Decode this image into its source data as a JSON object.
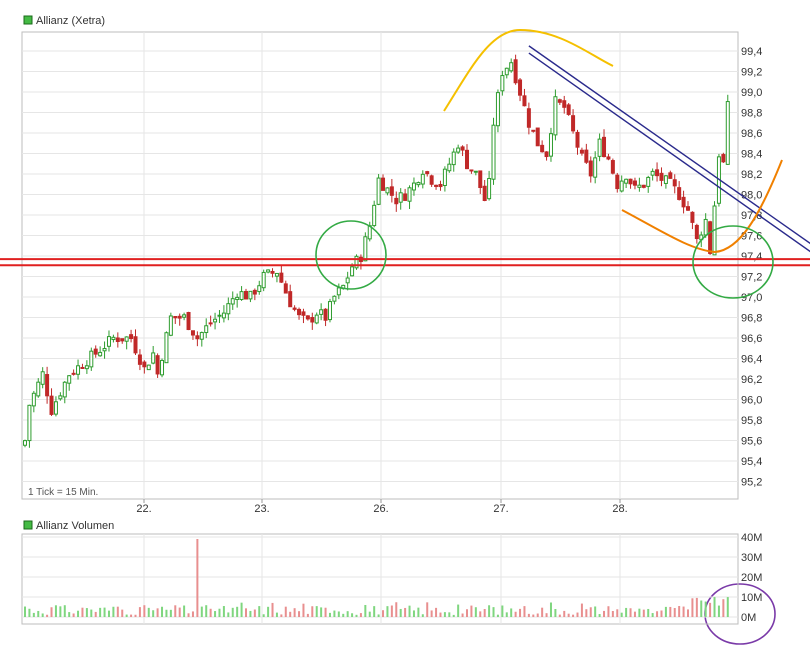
{
  "colors": {
    "up": "#2e9c2e",
    "down": "#c02828",
    "vol_up": "#7fd67f",
    "vol_down": "#e88f8f",
    "legend_box": "#44bb44",
    "support": "#e02020",
    "trend": "#2a2a8c",
    "arc_upper": "#f5c000",
    "arc_lower": "#f08000",
    "circle_green": "#33aa44",
    "circle_purple": "#7a3aa8"
  },
  "chart_data": [
    {
      "type": "candlestick",
      "title": "Allianz (Xetra)",
      "note": "1 Tick = 15 Min.",
      "x_ticks": [
        "22.",
        "23.",
        "26.",
        "27.",
        "28."
      ],
      "y_ticks": [
        "99,4",
        "99,2",
        "99,0",
        "98,8",
        "98,6",
        "98,4",
        "98,2",
        "98,0",
        "97,8",
        "97,6",
        "97,4",
        "97,2",
        "97,0",
        "96,8",
        "96,6",
        "96,4",
        "96,2",
        "96,0",
        "95,8",
        "95,6",
        "95,4",
        "95,2"
      ],
      "ylim": [
        95.1,
        99.55
      ],
      "grid": true,
      "close_path": [
        [
          0,
          95.6
        ],
        [
          1,
          95.95
        ],
        [
          4,
          96.25
        ],
        [
          6,
          95.9
        ],
        [
          10,
          96.25
        ],
        [
          16,
          96.45
        ],
        [
          20,
          96.6
        ],
        [
          24,
          96.6
        ],
        [
          27,
          96.3
        ],
        [
          29,
          96.45
        ],
        [
          30,
          96.25
        ],
        [
          33,
          96.8
        ],
        [
          36,
          96.8
        ],
        [
          39,
          96.6
        ],
        [
          42,
          96.75
        ],
        [
          45,
          96.85
        ],
        [
          48,
          97.05
        ],
        [
          51,
          97.0
        ],
        [
          54,
          97.2
        ],
        [
          57,
          97.25
        ],
        [
          60,
          96.95
        ],
        [
          62,
          96.8
        ],
        [
          64,
          96.75
        ],
        [
          66,
          96.85
        ],
        [
          68,
          96.8
        ],
        [
          70,
          97.0
        ],
        [
          72,
          97.1
        ],
        [
          74,
          97.3
        ],
        [
          76,
          97.4
        ],
        [
          78,
          97.7
        ],
        [
          80,
          98.15
        ],
        [
          82,
          98.05
        ],
        [
          84,
          97.95
        ],
        [
          86,
          98.0
        ],
        [
          88,
          98.1
        ],
        [
          90,
          98.25
        ],
        [
          92,
          98.15
        ],
        [
          94,
          98.1
        ],
        [
          96,
          98.3
        ],
        [
          98,
          98.5
        ],
        [
          100,
          98.3
        ],
        [
          102,
          98.2
        ],
        [
          104,
          97.95
        ],
        [
          105,
          98.1
        ],
        [
          106,
          98.7
        ],
        [
          108,
          99.2
        ],
        [
          110,
          99.3
        ],
        [
          112,
          99.0
        ],
        [
          114,
          98.7
        ],
        [
          116,
          98.5
        ],
        [
          118,
          98.4
        ],
        [
          120,
          98.9
        ],
        [
          122,
          98.85
        ],
        [
          124,
          98.6
        ],
        [
          126,
          98.35
        ],
        [
          128,
          98.2
        ],
        [
          130,
          98.5
        ],
        [
          132,
          98.35
        ],
        [
          134,
          98.1
        ],
        [
          136,
          98.2
        ],
        [
          138,
          98.05
        ],
        [
          140,
          98.1
        ],
        [
          142,
          98.2
        ],
        [
          144,
          98.15
        ],
        [
          146,
          98.1
        ],
        [
          148,
          98.0
        ],
        [
          150,
          97.85
        ],
        [
          152,
          97.55
        ],
        [
          154,
          97.75
        ],
        [
          155,
          97.45
        ],
        [
          156,
          97.9
        ],
        [
          157,
          98.4
        ],
        [
          158,
          98.3
        ],
        [
          159,
          98.85
        ]
      ],
      "horizontal_lines": [
        97.37,
        97.31
      ],
      "trend_lines": [
        {
          "from": [
            114,
            99.45
          ],
          "to": [
            185,
            97.3
          ]
        },
        {
          "from": [
            114,
            99.38
          ],
          "to": [
            185,
            97.22
          ]
        }
      ]
    },
    {
      "type": "bar",
      "title": "Allianz Volumen",
      "y_ticks": [
        "40M",
        "30M",
        "20M",
        "10M",
        "0M"
      ],
      "ylim": [
        0,
        40
      ],
      "note": "volume per 15-min tick; mostly 1–8M, spike ~39M shortly before 23.",
      "peak": {
        "index": 39,
        "value": 39
      }
    }
  ]
}
